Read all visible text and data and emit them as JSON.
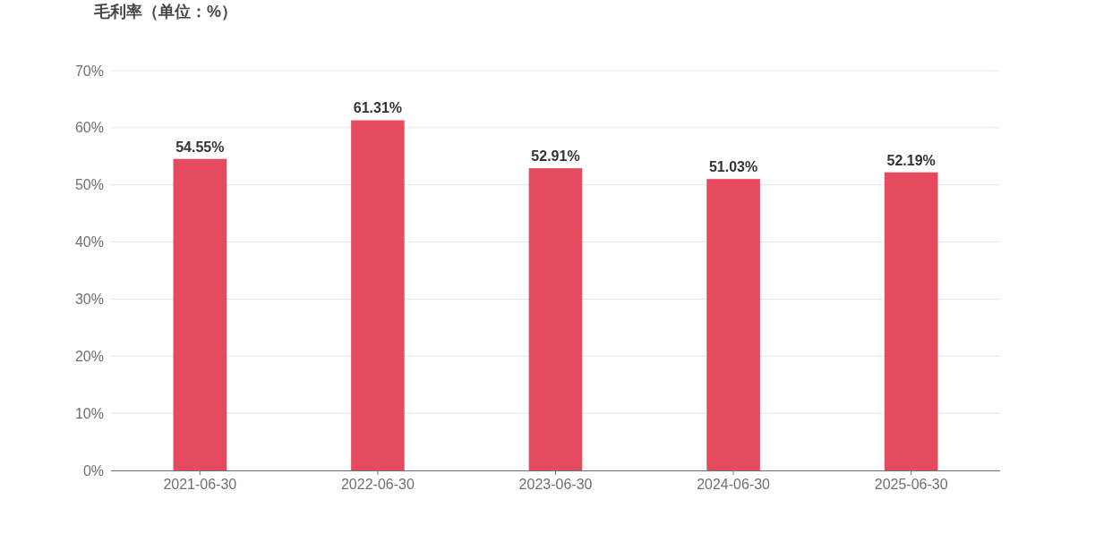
{
  "chart_data": {
    "type": "bar",
    "title": "毛利率（单位：%）",
    "categories": [
      "2021-06-30",
      "2022-06-30",
      "2023-06-30",
      "2024-06-30",
      "2025-06-30"
    ],
    "values": [
      54.55,
      61.31,
      52.91,
      51.03,
      52.19
    ],
    "value_labels": [
      "54.55%",
      "61.31%",
      "52.91%",
      "51.03%",
      "52.19%"
    ],
    "color": "#e64a5f",
    "ylim": [
      0,
      70
    ],
    "yticks": [
      {
        "value": 0,
        "label": "0%"
      },
      {
        "value": 10,
        "label": "10%"
      },
      {
        "value": 20,
        "label": "20%"
      },
      {
        "value": 30,
        "label": "30%"
      },
      {
        "value": 40,
        "label": "40%"
      },
      {
        "value": 50,
        "label": "50%"
      },
      {
        "value": 60,
        "label": "60%"
      },
      {
        "value": 70,
        "label": "70%"
      }
    ],
    "grid": "y"
  }
}
